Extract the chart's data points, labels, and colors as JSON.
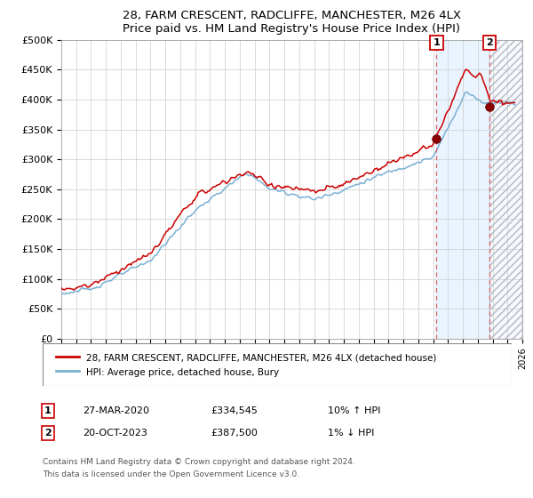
{
  "title": "28, FARM CRESCENT, RADCLIFFE, MANCHESTER, M26 4LX",
  "subtitle": "Price paid vs. HM Land Registry's House Price Index (HPI)",
  "hpi_color": "#7ab0d4",
  "price_color": "#cc0000",
  "dashed_color": "#e06060",
  "yticks": [
    0,
    50000,
    100000,
    150000,
    200000,
    250000,
    300000,
    350000,
    400000,
    450000,
    500000
  ],
  "ytick_labels": [
    "£0",
    "£50K",
    "£100K",
    "£150K",
    "£200K",
    "£250K",
    "£300K",
    "£350K",
    "£400K",
    "£450K",
    "£500K"
  ],
  "sale1_x": 2020.23,
  "sale1_y": 334545,
  "sale2_x": 2023.8,
  "sale2_y": 387500,
  "shade_start": 2020.23,
  "shade_end": 2023.8,
  "hatch_start": 2023.8,
  "hatch_end": 2026,
  "sale1_date": "27-MAR-2020",
  "sale1_price": "£334,545",
  "sale1_hpi": "10% ↑ HPI",
  "sale2_date": "20-OCT-2023",
  "sale2_price": "£387,500",
  "sale2_hpi": "1% ↓ HPI",
  "legend_line1": "28, FARM CRESCENT, RADCLIFFE, MANCHESTER, M26 4LX (detached house)",
  "legend_line2": "HPI: Average price, detached house, Bury",
  "footer1": "Contains HM Land Registry data © Crown copyright and database right 2024.",
  "footer2": "This data is licensed under the Open Government Licence v3.0.",
  "xlim_start": 1995,
  "xlim_end": 2026
}
